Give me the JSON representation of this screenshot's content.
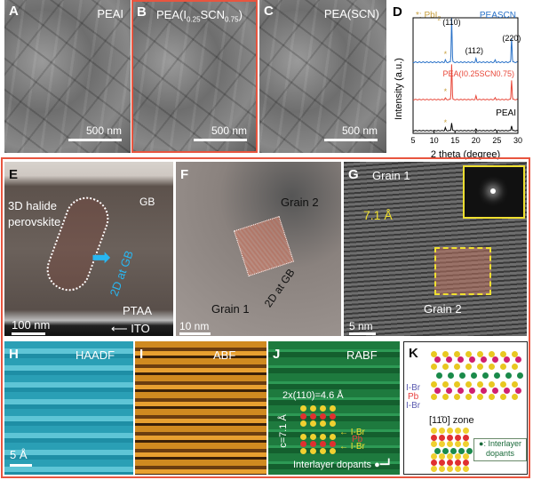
{
  "panels": {
    "A": {
      "label": "A",
      "title": "PEAI",
      "scale": "500 nm"
    },
    "B": {
      "label": "B",
      "title_pre": "PEA(I",
      "sub1": "0.25",
      "mid": "SCN",
      "sub2": "0.75",
      "post": ")",
      "scale": "500 nm"
    },
    "C": {
      "label": "C",
      "title": "PEA(SCN)",
      "scale": "500 nm"
    },
    "E": {
      "label": "E",
      "text1": "3D halide",
      "text2": "perovskite",
      "gb": "GB",
      "gb2d": "2D at GB",
      "ptaa": "PTAA",
      "ito": "ITO",
      "scale": "100  nm"
    },
    "F": {
      "label": "F",
      "grain2": "Grain 2",
      "grain1": "Grain 1",
      "gb2d": "2D at GB",
      "scale": "10  nm"
    },
    "G": {
      "label": "G",
      "grain1": "Grain 1",
      "grain2": "Grain 2",
      "spacing": "7.1 Å",
      "scale": "5  nm"
    },
    "H": {
      "label": "H",
      "title": "HAADF",
      "scale": "5 Å"
    },
    "I": {
      "label": "I",
      "title": "ABF"
    },
    "J": {
      "label": "J",
      "title": "RABF",
      "d110": "2x(110)=4.6 Å",
      "c": "c=7.1 Å",
      "ibr1": "I-Br",
      "pb": "Pb",
      "ibr2": "I-Br",
      "dopants": "Interlayer dopants"
    },
    "K": {
      "label": "K",
      "ibr": "I-Br",
      "pb": "Pb",
      "zone": "[11̄0] zone",
      "legend1": "●: Interlayer",
      "legend2": "dopants"
    }
  },
  "colors": {
    "frame": "#e8553f",
    "peascn": "#2a72c8",
    "mixed": "#e8483a",
    "peai": "#000000",
    "pbi2": "#c8a040",
    "cyan": "#29b6f0"
  },
  "chart_data": {
    "type": "line",
    "label": "D",
    "xlabel": "2 theta (degree)",
    "ylabel": "Intensity (a.u.)",
    "xlim": [
      5,
      30
    ],
    "xticks": [
      "5",
      "10",
      "15",
      "20",
      "25",
      "30"
    ],
    "legend_pbi2": "*: PbI",
    "legend_pbi2_sub": "2",
    "peak_labels": [
      "(110)",
      "(112)",
      "(220)"
    ],
    "series": [
      {
        "name": "PEASCN",
        "color": "#2a72c8",
        "peaks": [
          [
            12.7,
            0.05
          ],
          [
            14.2,
            1.0
          ],
          [
            20.0,
            0.08
          ],
          [
            24.6,
            0.05
          ],
          [
            28.5,
            0.55
          ]
        ]
      },
      {
        "name": "PEA(I0.25SCN0.75)",
        "color": "#e8483a",
        "peaks": [
          [
            12.7,
            0.04
          ],
          [
            14.2,
            1.0
          ],
          [
            20.0,
            0.1
          ],
          [
            24.6,
            0.05
          ],
          [
            28.5,
            0.55
          ]
        ]
      },
      {
        "name": "PEAI",
        "color": "#000000",
        "peaks": [
          [
            12.7,
            0.15
          ],
          [
            14.2,
            0.4
          ],
          [
            20.0,
            0.08
          ],
          [
            24.6,
            0.05
          ],
          [
            28.5,
            0.25
          ]
        ]
      }
    ],
    "pbi2_marker_x": 12.7
  }
}
